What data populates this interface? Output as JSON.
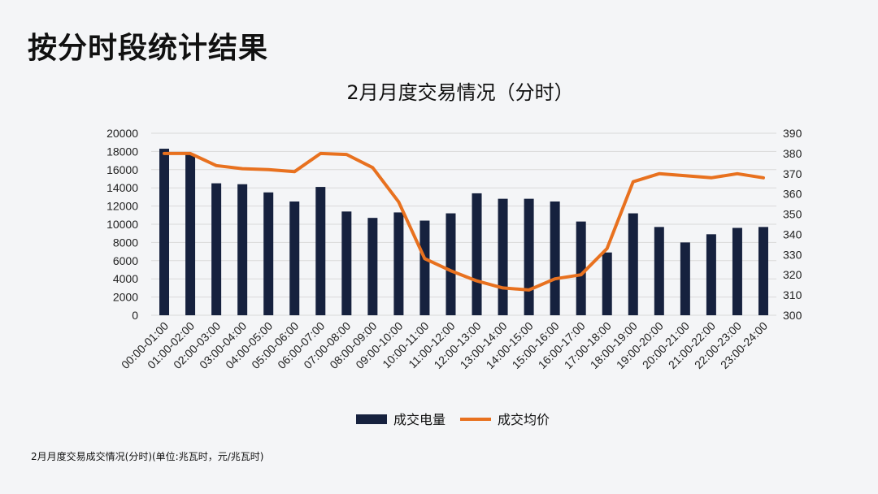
{
  "page": {
    "title": "按分时段统计结果",
    "footnote": "2月月度交易成交情况(分时)(单位:兆瓦时，元/兆瓦时)"
  },
  "colors": {
    "bar": "#16213e",
    "line": "#e8711f",
    "grid": "#d9d9d9"
  },
  "chart_data": {
    "type": "bar+line",
    "title": "2月月度交易情况（分时）",
    "categories": [
      "00:00-01:00",
      "01:00-02:00",
      "02:00-03:00",
      "03:00-04:00",
      "04:00-05:00",
      "05:00-06:00",
      "06:00-07:00",
      "07:00-08:00",
      "08:00-09:00",
      "09:00-10:00",
      "10:00-11:00",
      "11:00-12:00",
      "12:00-13:00",
      "13:00-14:00",
      "14:00-15:00",
      "15:00-16:00",
      "16:00-17:00",
      "17:00-18:00",
      "18:00-19:00",
      "19:00-20:00",
      "20:00-21:00",
      "21:00-22:00",
      "22:00-23:00",
      "23:00-24:00"
    ],
    "series": [
      {
        "name": "成交电量",
        "type": "bar",
        "axis": "left",
        "values": [
          18300,
          17700,
          14500,
          14400,
          13500,
          12500,
          14100,
          11400,
          10700,
          11300,
          10400,
          11200,
          13400,
          12800,
          12800,
          12500,
          10300,
          6900,
          11200,
          9700,
          8000,
          8900,
          9600,
          9700
        ]
      },
      {
        "name": "成交均价",
        "type": "line",
        "axis": "right",
        "values": [
          380,
          380,
          374,
          372.5,
          372,
          371,
          380,
          379.5,
          373,
          356,
          328,
          322,
          317,
          313.5,
          312.5,
          318,
          320,
          333,
          366,
          370,
          369,
          368,
          370,
          368
        ]
      }
    ],
    "y_left": {
      "min": 0,
      "max": 20000,
      "step": 2000,
      "ticks": [
        "0",
        "2000",
        "4000",
        "6000",
        "8000",
        "10000",
        "12000",
        "14000",
        "16000",
        "18000",
        "20000"
      ]
    },
    "y_right": {
      "min": 300,
      "max": 390,
      "step": 10,
      "ticks": [
        "300",
        "310",
        "320",
        "330",
        "340",
        "350",
        "360",
        "370",
        "380",
        "390"
      ]
    },
    "grid": true,
    "legend": "bottom-center"
  }
}
